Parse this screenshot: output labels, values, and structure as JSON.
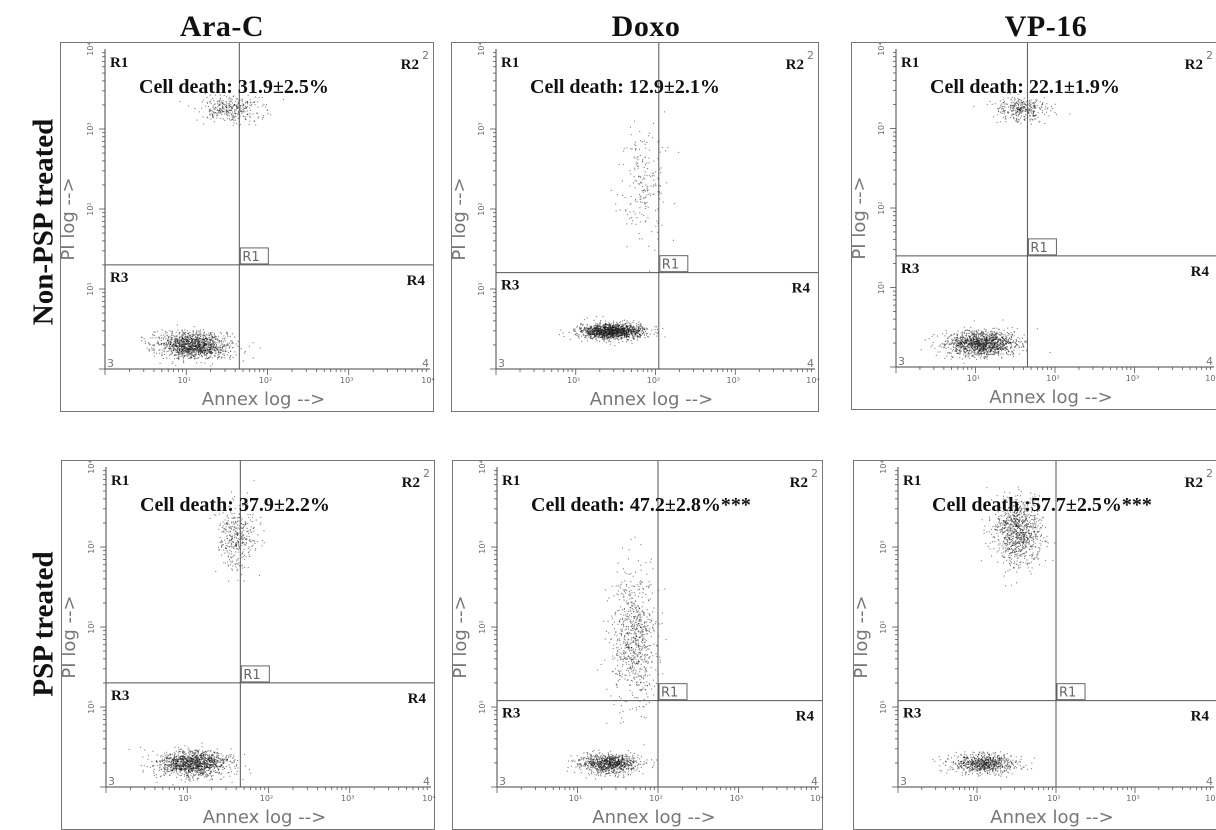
{
  "columns": [
    "Ara-C",
    "Doxo",
    "VP-16"
  ],
  "rows": [
    "Non-PSP treated",
    "PSP treated"
  ],
  "axis": {
    "x_label": "Annex log -->",
    "y_label": "PI log -->",
    "x_ticks": [
      "10⁰",
      "10¹",
      "10²",
      "10³",
      "10⁴"
    ],
    "y_ticks": [
      "10⁰",
      "10¹",
      "10²",
      "10³",
      "10⁴"
    ],
    "scale": "log"
  },
  "gate_label": "R1",
  "region_labels": [
    "R1",
    "R2",
    "R3",
    "R4"
  ],
  "region_numbers": [
    "2",
    "3",
    "4"
  ],
  "chart_data": [
    {
      "type": "scatter",
      "row": "Non-PSP treated",
      "drug": "Ara-C",
      "annotation": "Cell death: 31.9±2.5%",
      "xlabel": "Annex log -->",
      "ylabel": "PI log -->",
      "xlim": [
        1,
        10000
      ],
      "ylim": [
        1,
        10000
      ],
      "log_scale": true,
      "gate": {
        "x": 45,
        "y": 20
      },
      "populations": [
        {
          "x": 12,
          "y": 2,
          "sx": 0.22,
          "sy": 0.08,
          "weight": 0.8
        },
        {
          "x": 35,
          "y": 1800,
          "sx": 0.18,
          "sy": 0.08,
          "weight": 0.2
        }
      ]
    },
    {
      "type": "scatter",
      "row": "Non-PSP treated",
      "drug": "Doxo",
      "annotation": "Cell death: 12.9±2.1%",
      "xlabel": "Annex log -->",
      "ylabel": "PI log -->",
      "xlim": [
        1,
        10000
      ],
      "ylim": [
        1,
        10000
      ],
      "log_scale": true,
      "gate": {
        "x": 110,
        "y": 16
      },
      "populations": [
        {
          "x": 28,
          "y": 3,
          "sx": 0.2,
          "sy": 0.05,
          "weight": 0.88
        },
        {
          "x": 70,
          "y": 220,
          "sx": 0.15,
          "sy": 0.35,
          "weight": 0.12
        }
      ]
    },
    {
      "type": "scatter",
      "row": "Non-PSP treated",
      "drug": "VP-16",
      "annotation": "Cell death: 22.1±1.9%",
      "xlabel": "Annex log -->",
      "ylabel": "PI log -->",
      "xlim": [
        1,
        10000
      ],
      "ylim": [
        1,
        10000
      ],
      "log_scale": true,
      "gate": {
        "x": 45,
        "y": 25
      },
      "populations": [
        {
          "x": 12,
          "y": 2,
          "sx": 0.22,
          "sy": 0.08,
          "weight": 0.8
        },
        {
          "x": 38,
          "y": 1800,
          "sx": 0.16,
          "sy": 0.08,
          "weight": 0.2
        }
      ]
    },
    {
      "type": "scatter",
      "row": "PSP treated",
      "drug": "Ara-C",
      "annotation": "Cell death: 37.9±2.2%",
      "xlabel": "Annex log -->",
      "ylabel": "PI log -->",
      "xlim": [
        1,
        10000
      ],
      "ylim": [
        1,
        10000
      ],
      "log_scale": true,
      "gate": {
        "x": 45,
        "y": 20
      },
      "populations": [
        {
          "x": 12,
          "y": 2,
          "sx": 0.22,
          "sy": 0.08,
          "weight": 0.78
        },
        {
          "x": 42,
          "y": 1400,
          "sx": 0.12,
          "sy": 0.2,
          "weight": 0.22
        }
      ]
    },
    {
      "type": "scatter",
      "row": "PSP treated",
      "drug": "Doxo",
      "annotation": "Cell death: 47.2±2.8%***",
      "xlabel": "Annex log -->",
      "ylabel": "PI log -->",
      "xlim": [
        1,
        10000
      ],
      "ylim": [
        1,
        10000
      ],
      "log_scale": true,
      "gate": {
        "x": 100,
        "y": 12
      },
      "populations": [
        {
          "x": 25,
          "y": 2,
          "sx": 0.18,
          "sy": 0.06,
          "weight": 0.55
        },
        {
          "x": 50,
          "y": 70,
          "sx": 0.14,
          "sy": 0.4,
          "weight": 0.45
        }
      ]
    },
    {
      "type": "scatter",
      "row": "PSP treated",
      "drug": "VP-16",
      "annotation": "Cell death :57.7±2.5%***",
      "xlabel": "Annex log -->",
      "ylabel": "PI log -->",
      "xlim": [
        1,
        10000
      ],
      "ylim": [
        1,
        10000
      ],
      "log_scale": true,
      "gate": {
        "x": 100,
        "y": 12
      },
      "populations": [
        {
          "x": 12,
          "y": 2,
          "sx": 0.2,
          "sy": 0.06,
          "weight": 0.45
        },
        {
          "x": 32,
          "y": 1600,
          "sx": 0.16,
          "sy": 0.2,
          "weight": 0.55
        }
      ]
    }
  ]
}
